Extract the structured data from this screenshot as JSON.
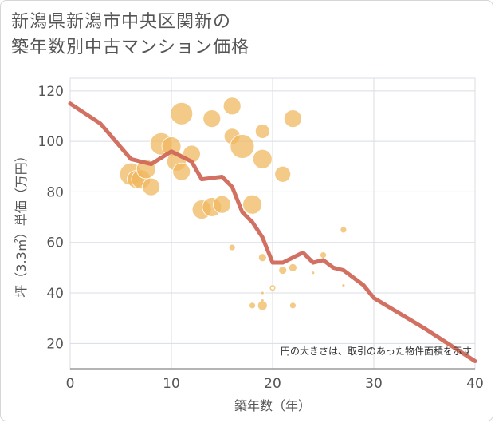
{
  "title_line1": "新潟県新潟市中央区関新の",
  "title_line2": "築年数別中古マンション価格",
  "chart_data": {
    "type": "scatter",
    "xlabel": "築年数（年）",
    "ylabel": "坪（3.3㎡）単価（万円）",
    "xlim": [
      0,
      40
    ],
    "ylim": [
      10,
      125
    ],
    "xticks": [
      "0",
      "10",
      "20",
      "30",
      "40"
    ],
    "yticks": [
      "20",
      "40",
      "60",
      "80",
      "100",
      "120"
    ],
    "xtick_values": [
      0,
      10,
      20,
      30,
      40
    ],
    "ytick_values": [
      20,
      40,
      60,
      80,
      100,
      120
    ],
    "grid": true,
    "note": "円の大きさは、取引のあった物件面積を示す",
    "colors": {
      "bubble": "#f0b860",
      "line": "#d0685a",
      "grid": "#d8dee4",
      "axis": "#888888"
    },
    "bubbles": [
      {
        "x": 6,
        "y": 87,
        "size": 14
      },
      {
        "x": 6.5,
        "y": 85,
        "size": 11
      },
      {
        "x": 7,
        "y": 85,
        "size": 12
      },
      {
        "x": 7.5,
        "y": 89,
        "size": 12
      },
      {
        "x": 8,
        "y": 82,
        "size": 11
      },
      {
        "x": 9,
        "y": 99,
        "size": 14
      },
      {
        "x": 10,
        "y": 98,
        "size": 12
      },
      {
        "x": 10.5,
        "y": 92,
        "size": 12
      },
      {
        "x": 11,
        "y": 111,
        "size": 14
      },
      {
        "x": 11,
        "y": 88,
        "size": 11
      },
      {
        "x": 12,
        "y": 95,
        "size": 11
      },
      {
        "x": 13,
        "y": 73,
        "size": 12
      },
      {
        "x": 14,
        "y": 74,
        "size": 12
      },
      {
        "x": 14,
        "y": 109,
        "size": 11
      },
      {
        "x": 15,
        "y": 75,
        "size": 11
      },
      {
        "x": 16,
        "y": 114,
        "size": 11
      },
      {
        "x": 16,
        "y": 102,
        "size": 10
      },
      {
        "x": 17,
        "y": 98,
        "size": 15
      },
      {
        "x": 18,
        "y": 75,
        "size": 12
      },
      {
        "x": 19,
        "y": 104,
        "size": 9
      },
      {
        "x": 19,
        "y": 93,
        "size": 12
      },
      {
        "x": 21,
        "y": 87,
        "size": 10
      },
      {
        "x": 22,
        "y": 109,
        "size": 11
      },
      {
        "x": 16,
        "y": 58,
        "size": 4
      },
      {
        "x": 19,
        "y": 54,
        "size": 5
      },
      {
        "x": 21,
        "y": 49,
        "size": 5
      },
      {
        "x": 22,
        "y": 50,
        "size": 5
      },
      {
        "x": 25,
        "y": 55,
        "size": 4
      },
      {
        "x": 27,
        "y": 65,
        "size": 4
      },
      {
        "x": 18,
        "y": 35,
        "size": 4
      },
      {
        "x": 19,
        "y": 35,
        "size": 6
      },
      {
        "x": 19,
        "y": 40,
        "size": 2
      },
      {
        "x": 19,
        "y": 37,
        "size": 2
      },
      {
        "x": 20,
        "y": 42,
        "size": 4
      },
      {
        "x": 22,
        "y": 35,
        "size": 4
      },
      {
        "x": 24,
        "y": 48,
        "size": 2
      },
      {
        "x": 27,
        "y": 43,
        "size": 2
      },
      {
        "x": 15,
        "y": 50,
        "size": 1
      }
    ],
    "line": {
      "x": [
        0,
        3,
        6,
        8,
        10,
        12,
        13,
        15,
        16,
        17,
        18,
        19,
        20,
        21,
        22,
        23,
        24,
        25,
        26,
        27,
        28,
        29,
        30,
        35,
        40
      ],
      "y": [
        115,
        107,
        93,
        91,
        96,
        92,
        85,
        86,
        82,
        72,
        68,
        62,
        52,
        52,
        54,
        56,
        52,
        53,
        50,
        49,
        46,
        43,
        38,
        26,
        13
      ]
    }
  }
}
